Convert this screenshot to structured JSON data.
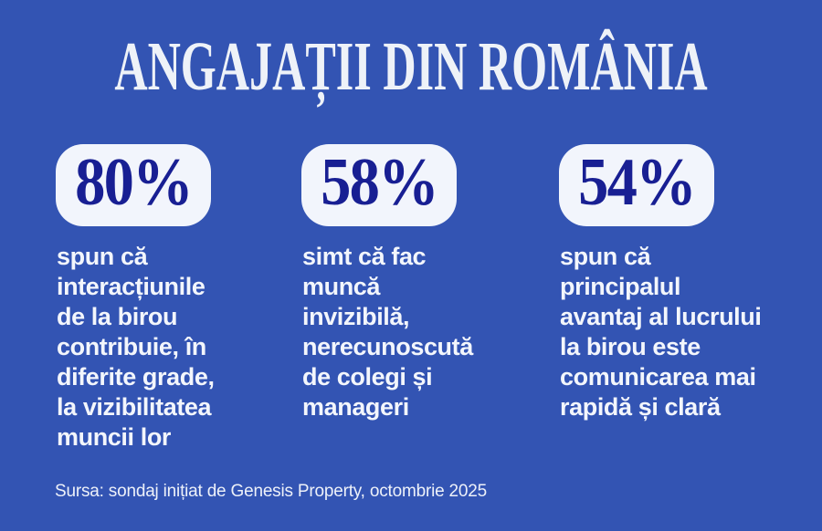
{
  "page": {
    "background_color": "#3354b3",
    "card_color": "#f2f5fc",
    "accent_navy": "#181f93",
    "text_color": "#f3f6fc"
  },
  "header": {
    "title": "ANGAJAȚII DIN ROMÂNIA"
  },
  "stats": [
    {
      "value": "80%",
      "description": "spun că\ninteracțiunile\nde la birou\ncontribuie, în\ndiferite grade,\nla vizibilitatea\nmuncii lor"
    },
    {
      "value": "58%",
      "description": "simt că fac\nmuncă\ninvizibilă,\nnerecunoscută\nde colegi și\nmanageri"
    },
    {
      "value": "54%",
      "description": "spun că\nprincipalul\navantaj al lucrului\nla birou este\ncomunicarea mai\nrapidă și clară"
    }
  ],
  "footer": {
    "source": "Sursa: sondaj inițiat de Genesis Property, octombrie 2025"
  },
  "chart_data": {
    "type": "table",
    "title": "ANGAJAȚII DIN ROMÂNIA",
    "unit": "%",
    "values": [
      80,
      58,
      54
    ],
    "categories": [
      "spun că interacțiunile de la birou contribuie, în diferite grade, la vizibilitatea muncii lor",
      "simt că fac muncă invizibilă, nerecunoscută de colegi și manageri",
      "spun că principalul avantaj al lucrului la birou este comunicarea mai rapidă și clară"
    ],
    "source": "Sursa: sondaj inițiat de Genesis Property, octombrie 2025"
  }
}
